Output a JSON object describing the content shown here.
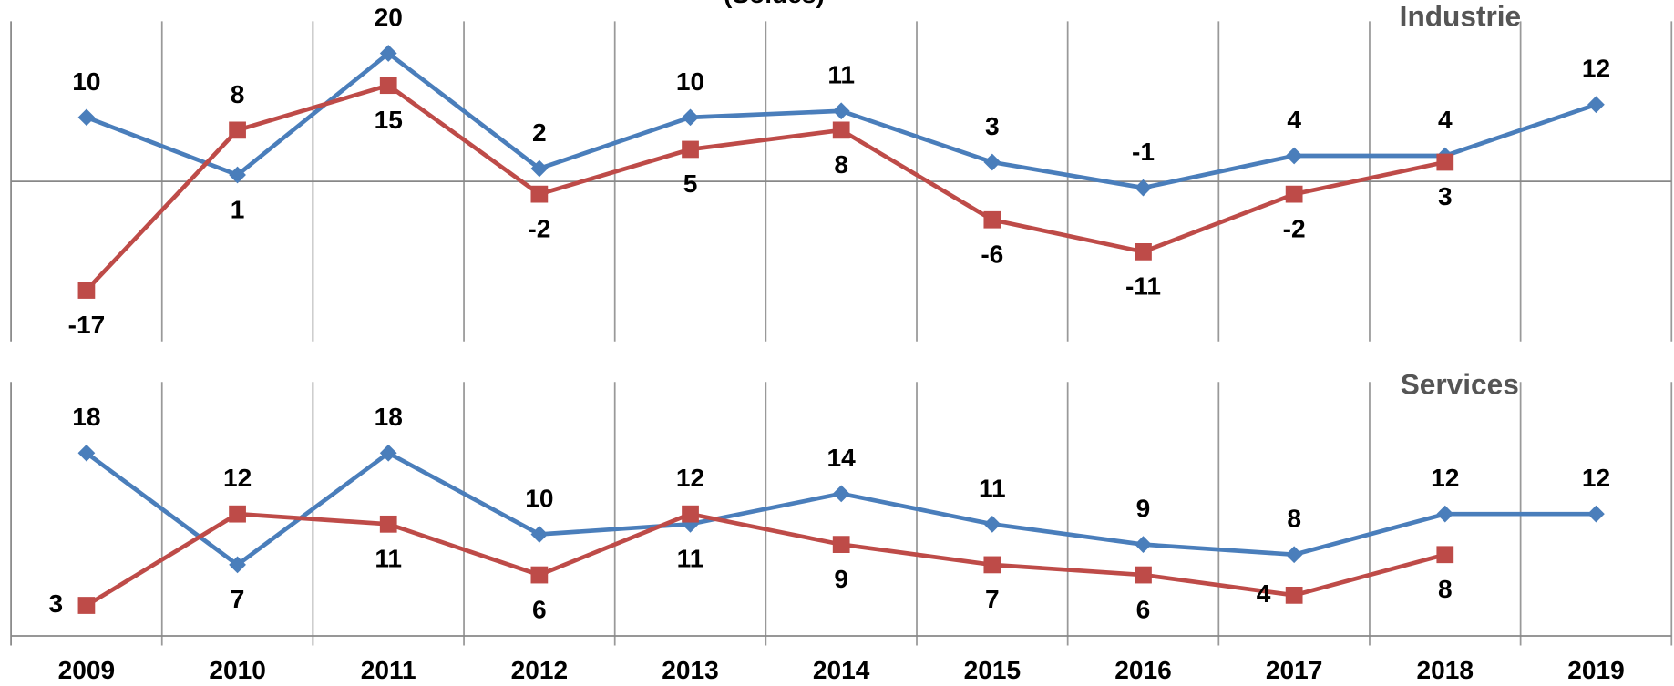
{
  "chart_data": [
    {
      "type": "line",
      "title": "(Soldes)",
      "subtitle": "Industrie",
      "ylim": [
        -25,
        25
      ],
      "series": [
        {
          "color": "#4a7ebb",
          "values": [
            10,
            1,
            20,
            2,
            10,
            11,
            3,
            -1,
            4,
            4,
            12
          ]
        },
        {
          "color": "#be4b48",
          "values": [
            -17,
            8,
            15,
            -2,
            5,
            8,
            -6,
            -11,
            -2,
            3,
            null
          ]
        }
      ],
      "grid": true
    },
    {
      "type": "line",
      "subtitle": "Services",
      "categories": [
        "2009",
        "2010",
        "2011",
        "2012",
        "2013",
        "2014",
        "2015",
        "2016",
        "2017",
        "2018",
        "2019"
      ],
      "ylim": [
        0,
        25
      ],
      "series": [
        {
          "color": "#4a7ebb",
          "values": [
            18,
            7,
            18,
            10,
            11,
            14,
            11,
            9,
            8,
            12,
            12
          ]
        },
        {
          "color": "#be4b48",
          "values": [
            3,
            12,
            11,
            6,
            12,
            9,
            7,
            6,
            4,
            8,
            null
          ]
        }
      ],
      "grid": true
    }
  ]
}
